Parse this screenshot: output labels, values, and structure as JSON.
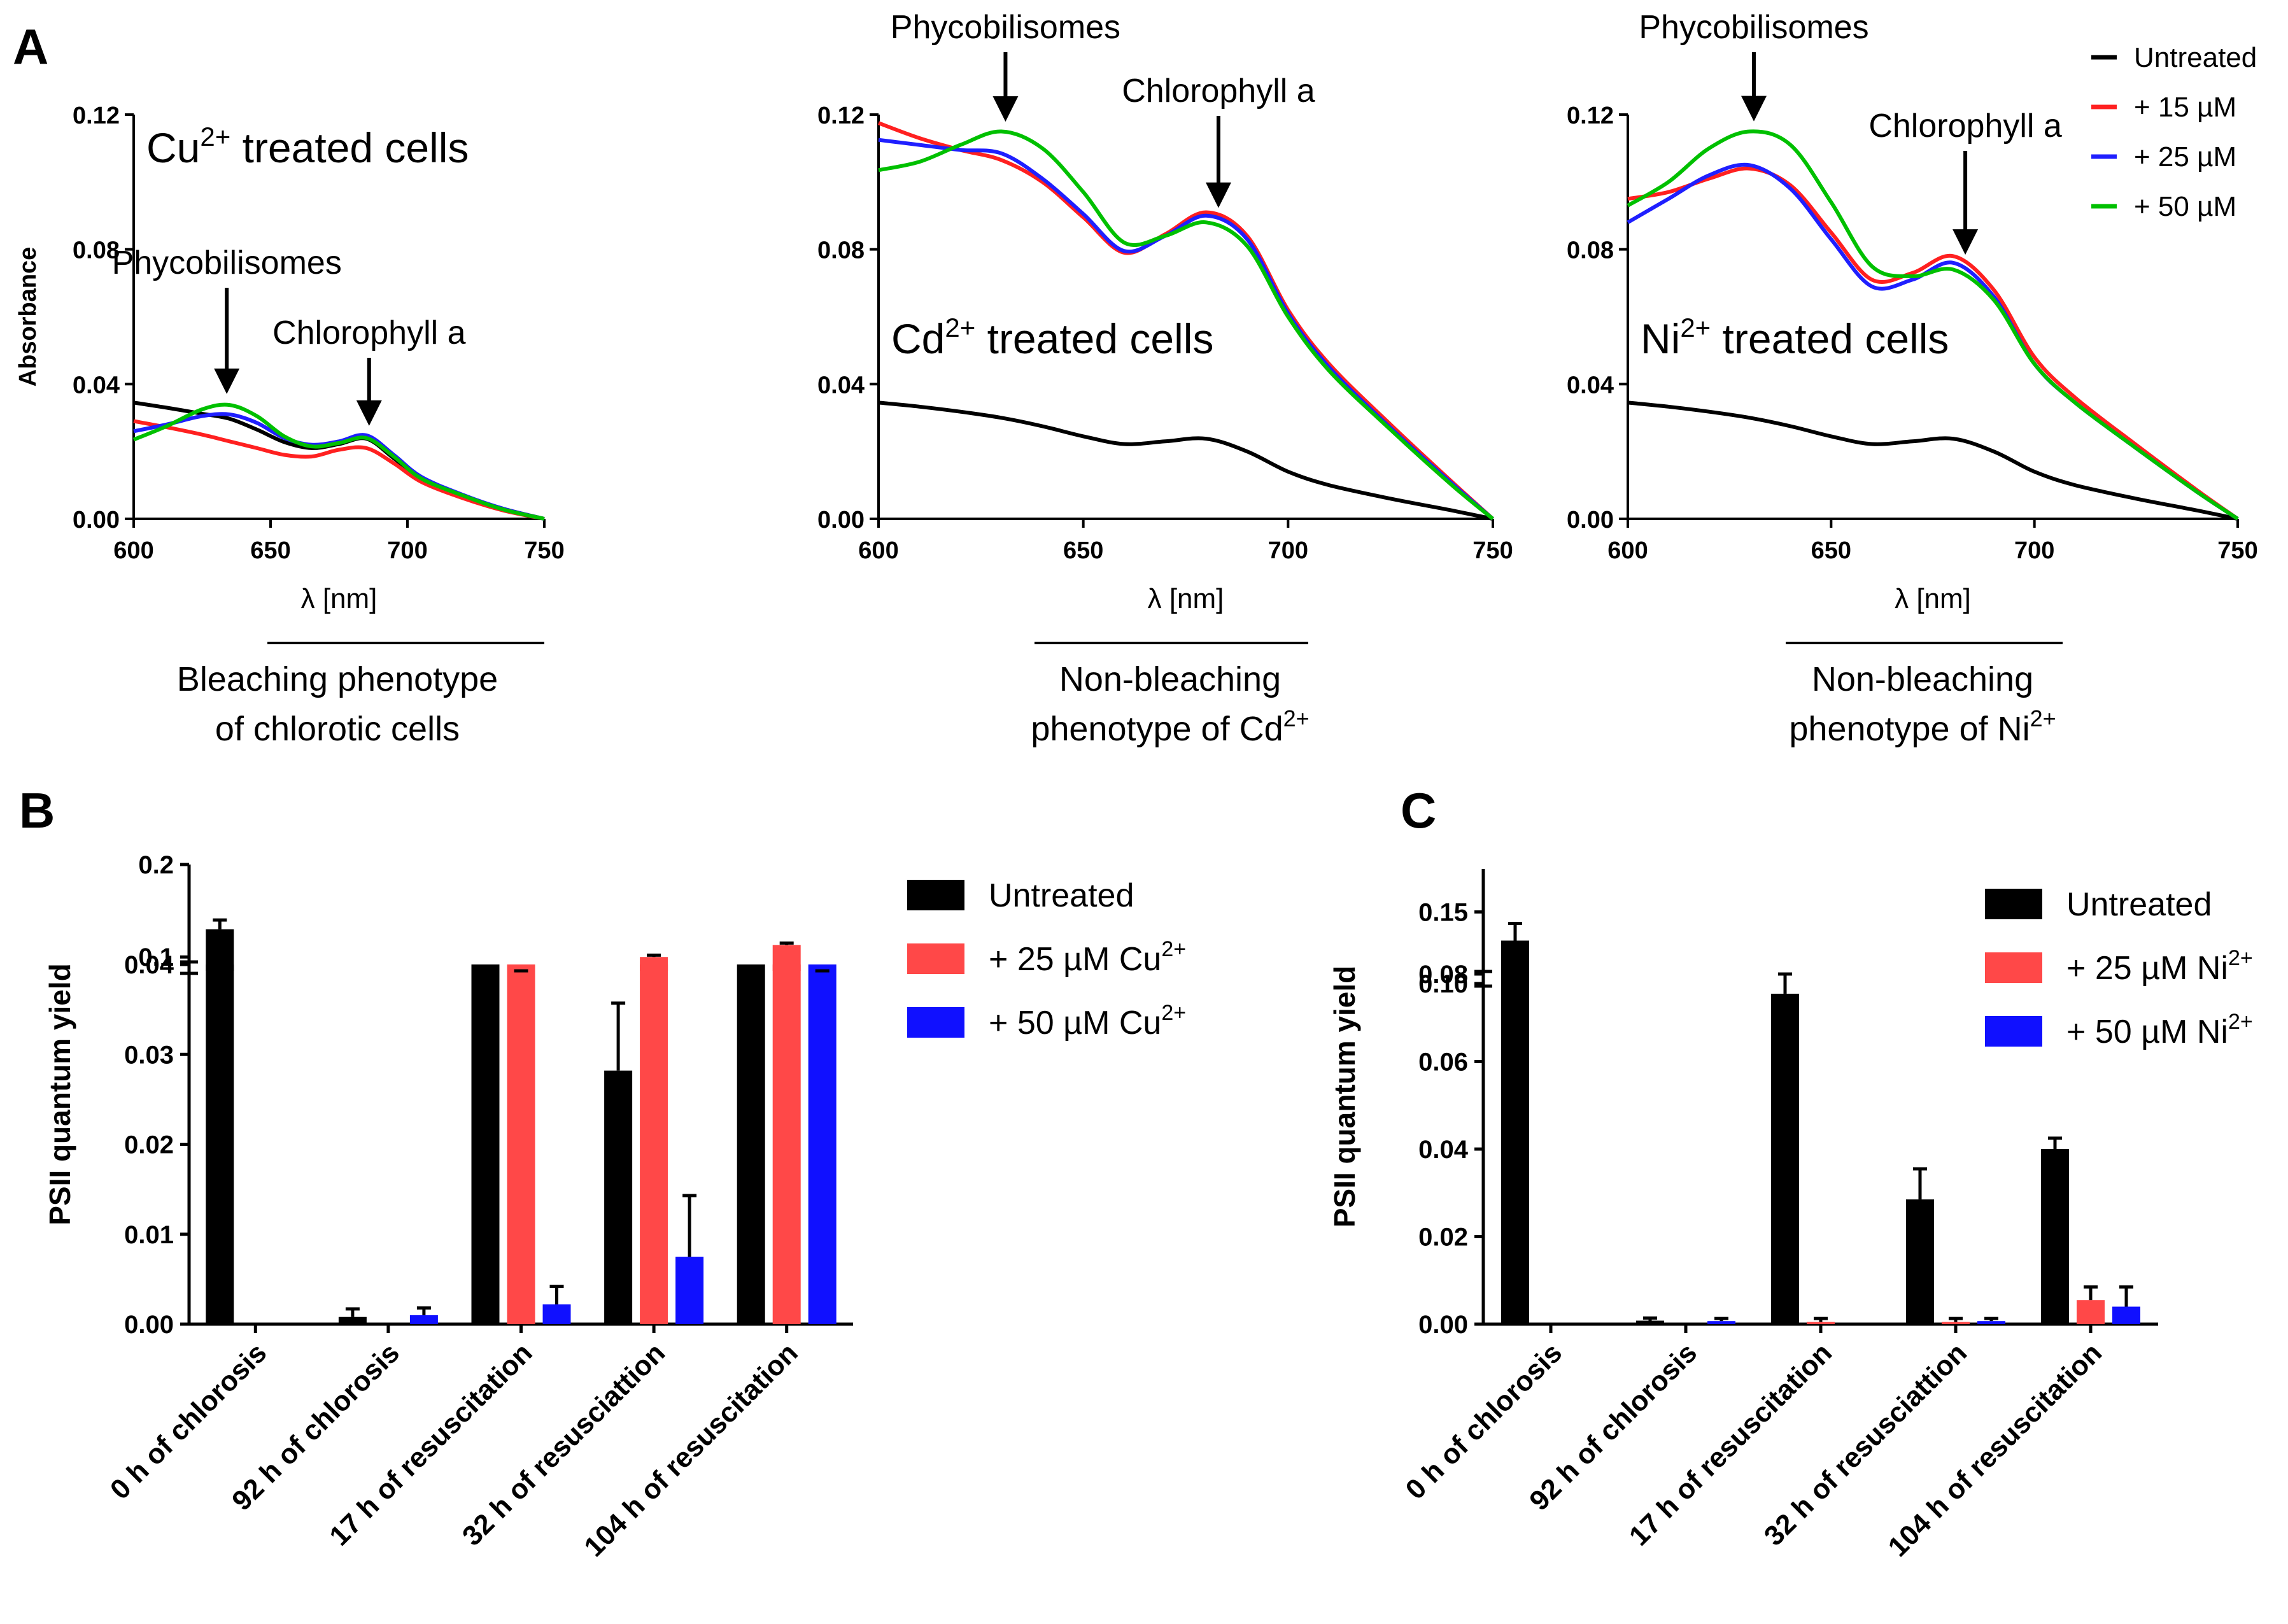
{
  "figure": {
    "panel_labels": [
      "A",
      "B",
      "C"
    ]
  },
  "colors": {
    "untreated": "#000000",
    "c15": "#ff2020",
    "c25": "#1f1fff",
    "c50": "#00c000",
    "bar_untreated": "#000000",
    "bar_25": "#ff4848",
    "bar_50": "#1010ff"
  },
  "legend_a": [
    {
      "label": "Untreated",
      "color": "#000000"
    },
    {
      "label": "+ 15 µM",
      "color": "#ff2020"
    },
    {
      "label": "+ 25 µM",
      "color": "#1f1fff"
    },
    {
      "label": "+ 50 µM",
      "color": "#00c000"
    }
  ],
  "chart_data": [
    {
      "type": "line",
      "panel": "A",
      "title": "Cu",
      "title_sup": "2+",
      "title_rest": " treated cells",
      "xlabel": "λ [nm]",
      "ylabel": "Absorbance",
      "xlim": [
        600,
        750
      ],
      "ylim": [
        0,
        0.12
      ],
      "xticks": [
        "600",
        "650",
        "700",
        "750"
      ],
      "yticks": [
        "0.00",
        "0.04",
        "0.08",
        "0.12"
      ],
      "annotations": [
        "Phycobilisomes",
        "Chlorophyll a"
      ],
      "annotation_x": [
        634,
        686
      ],
      "caption_lines": [
        "Bleaching phenotype",
        "of chlorotic cells"
      ],
      "x": [
        600,
        612,
        625,
        635,
        645,
        655,
        665,
        675,
        685,
        695,
        705,
        720,
        735,
        750
      ],
      "series": [
        {
          "name": "Untreated",
          "values": [
            0.0345,
            0.033,
            0.0312,
            0.0297,
            0.0265,
            0.0228,
            0.021,
            0.0222,
            0.0238,
            0.018,
            0.012,
            0.007,
            0.003,
            0.0
          ]
        },
        {
          "name": "+ 15 µM",
          "values": [
            0.029,
            0.0272,
            0.025,
            0.023,
            0.021,
            0.019,
            0.0185,
            0.0205,
            0.021,
            0.0165,
            0.011,
            0.0062,
            0.0025,
            0.0
          ]
        },
        {
          "name": "+ 25 µM",
          "values": [
            0.026,
            0.028,
            0.0305,
            0.031,
            0.0285,
            0.024,
            0.022,
            0.023,
            0.0248,
            0.019,
            0.0125,
            0.0072,
            0.003,
            0.0
          ]
        },
        {
          "name": "+ 50 µM",
          "values": [
            0.0235,
            0.0275,
            0.0325,
            0.0338,
            0.0305,
            0.0245,
            0.0215,
            0.0225,
            0.024,
            0.0185,
            0.012,
            0.007,
            0.0028,
            0.0
          ]
        }
      ]
    },
    {
      "type": "line",
      "panel": "A",
      "title": "Cd",
      "title_sup": "2+",
      "title_rest": " treated cells",
      "xlabel": "λ [nm]",
      "ylabel": "",
      "xlim": [
        600,
        750
      ],
      "ylim": [
        0,
        0.12
      ],
      "xticks": [
        "600",
        "650",
        "700",
        "750"
      ],
      "yticks": [
        "0.00",
        "0.04",
        "0.08",
        "0.12"
      ],
      "annotations": [
        "Phycobilisomes",
        "Chlorophyll a"
      ],
      "annotation_x": [
        631,
        683
      ],
      "caption_lines": [
        "Non-bleaching",
        "phenotype of Cd2+"
      ],
      "x": [
        600,
        610,
        620,
        630,
        640,
        650,
        660,
        670,
        680,
        690,
        700,
        710,
        725,
        740,
        750
      ],
      "series": [
        {
          "name": "Untreated",
          "values": [
            0.0345,
            0.0333,
            0.0318,
            0.03,
            0.0275,
            0.0245,
            0.0222,
            0.023,
            0.0238,
            0.02,
            0.014,
            0.01,
            0.006,
            0.0025,
            0.0
          ]
        },
        {
          "name": "+ 15 µM",
          "values": [
            0.1175,
            0.113,
            0.1095,
            0.1065,
            0.1,
            0.0895,
            0.079,
            0.0845,
            0.091,
            0.084,
            0.062,
            0.046,
            0.028,
            0.011,
            0.0
          ]
        },
        {
          "name": "+ 25 µM",
          "values": [
            0.1125,
            0.111,
            0.1095,
            0.1085,
            0.101,
            0.0905,
            0.0795,
            0.084,
            0.09,
            0.083,
            0.061,
            0.045,
            0.027,
            0.0105,
            0.0
          ]
        },
        {
          "name": "+ 50 µM",
          "values": [
            0.1035,
            0.106,
            0.111,
            0.115,
            0.11,
            0.097,
            0.082,
            0.084,
            0.088,
            0.081,
            0.06,
            0.044,
            0.0265,
            0.01,
            0.0
          ]
        }
      ]
    },
    {
      "type": "line",
      "panel": "A",
      "title": "Ni",
      "title_sup": "2+",
      "title_rest": " treated cells",
      "xlabel": "λ [nm]",
      "ylabel": "",
      "xlim": [
        600,
        750
      ],
      "ylim": [
        0,
        0.12
      ],
      "xticks": [
        "600",
        "650",
        "700",
        "750"
      ],
      "yticks": [
        "0.00",
        "0.04",
        "0.08",
        "0.12"
      ],
      "annotations": [
        "Phycobilisomes",
        "Chlorophyll a"
      ],
      "annotation_x": [
        631,
        683
      ],
      "caption_lines": [
        "Non-bleaching",
        "phenotype of Ni2+"
      ],
      "x": [
        600,
        610,
        620,
        630,
        640,
        650,
        660,
        670,
        680,
        690,
        700,
        710,
        725,
        740,
        750
      ],
      "series": [
        {
          "name": "Untreated",
          "values": [
            0.0345,
            0.0333,
            0.0318,
            0.03,
            0.0275,
            0.0245,
            0.0222,
            0.023,
            0.0238,
            0.02,
            0.014,
            0.01,
            0.006,
            0.0025,
            0.0
          ]
        },
        {
          "name": "+ 15 µM",
          "values": [
            0.095,
            0.097,
            0.101,
            0.104,
            0.099,
            0.085,
            0.071,
            0.073,
            0.078,
            0.068,
            0.048,
            0.036,
            0.022,
            0.0085,
            0.0
          ]
        },
        {
          "name": "+ 25 µM",
          "values": [
            0.088,
            0.095,
            0.102,
            0.105,
            0.098,
            0.083,
            0.069,
            0.071,
            0.076,
            0.066,
            0.046,
            0.0345,
            0.021,
            0.008,
            0.0
          ]
        },
        {
          "name": "+ 50 µM",
          "values": [
            0.093,
            0.1,
            0.11,
            0.115,
            0.111,
            0.094,
            0.075,
            0.072,
            0.074,
            0.065,
            0.046,
            0.0345,
            0.021,
            0.008,
            0.0
          ]
        }
      ]
    },
    {
      "type": "bar",
      "panel": "B",
      "ylabel": "PSII quantum yield",
      "categories": [
        "0 h of chlorosis",
        "92 h of chlorosis",
        "17 h of resuscitation",
        "32 h of resusciattion",
        "104 h of resuscitation"
      ],
      "broken_axis": {
        "lower": [
          0,
          0.04
        ],
        "upper": [
          0.085,
          0.2
        ],
        "lower_ticks": [
          "0.00",
          "0.01",
          "0.02",
          "0.03",
          "0.04"
        ],
        "upper_ticks": [
          "0.1",
          "0.2"
        ]
      },
      "series": [
        {
          "name": "Untreated",
          "values": [
            0.13,
            0.0008,
            0.078,
            0.0282,
            0.04
          ],
          "errors": [
            0.01,
            0.0009,
            0.005,
            0.0075,
            0.003
          ]
        },
        {
          "name": "+ 25 µM Cu2+",
          "values": [
            0,
            0,
            0.071,
            0.1,
            0.113
          ],
          "errors": [
            0,
            0,
            0.003,
            0.002,
            0.002
          ]
        },
        {
          "name": "+ 50 µM Cu2+",
          "values": [
            0,
            0.001,
            0.0022,
            0.0075,
            0.057
          ],
          "errors": [
            0,
            0.0008,
            0.002,
            0.0068,
            0.005
          ]
        }
      ]
    },
    {
      "type": "bar",
      "panel": "C",
      "ylabel": "PSII quantum yield",
      "categories": [
        "0 h of chlorosis",
        "92 h of chlorosis",
        "17 h of resuscitation",
        "32 h of resusciattion",
        "104 h of resuscitation"
      ],
      "broken_axis": {
        "lower": [
          0,
          0.08
        ],
        "upper": [
          0.1,
          0.18
        ],
        "lower_ticks": [
          "0.00",
          "0.02",
          "0.04",
          "0.06",
          "0.08"
        ],
        "upper_ticks": [
          "0.10",
          "0.15"
        ]
      },
      "series": [
        {
          "name": "Untreated",
          "values": [
            0.13,
            0.0008,
            0.0755,
            0.0285,
            0.04
          ],
          "errors": [
            0.012,
            0.0006,
            0.0045,
            0.007,
            0.0025
          ]
        },
        {
          "name": "+ 25 µM Ni2+",
          "values": [
            0,
            0,
            0.0005,
            0.0005,
            0.0055
          ],
          "errors": [
            0,
            0,
            0.0008,
            0.0008,
            0.003
          ]
        },
        {
          "name": "+ 50 µM Ni2+",
          "values": [
            0,
            0.0007,
            0,
            0.0007,
            0.004
          ],
          "errors": [
            0,
            0.0006,
            0,
            0.0006,
            0.0045
          ]
        }
      ]
    }
  ],
  "legend_b": [
    {
      "label": "Untreated",
      "sup": "",
      "color": "#000000"
    },
    {
      "label": "+ 25 µM Cu",
      "sup": "2+",
      "color": "#ff4848"
    },
    {
      "label": "+ 50 µM Cu",
      "sup": "2+",
      "color": "#1010ff"
    }
  ],
  "legend_c": [
    {
      "label": "Untreated",
      "sup": "",
      "color": "#000000"
    },
    {
      "label": "+ 25 µM Ni",
      "sup": "2+",
      "color": "#ff4848"
    },
    {
      "label": "+ 50 µM Ni",
      "sup": "2+",
      "color": "#1010ff"
    }
  ]
}
